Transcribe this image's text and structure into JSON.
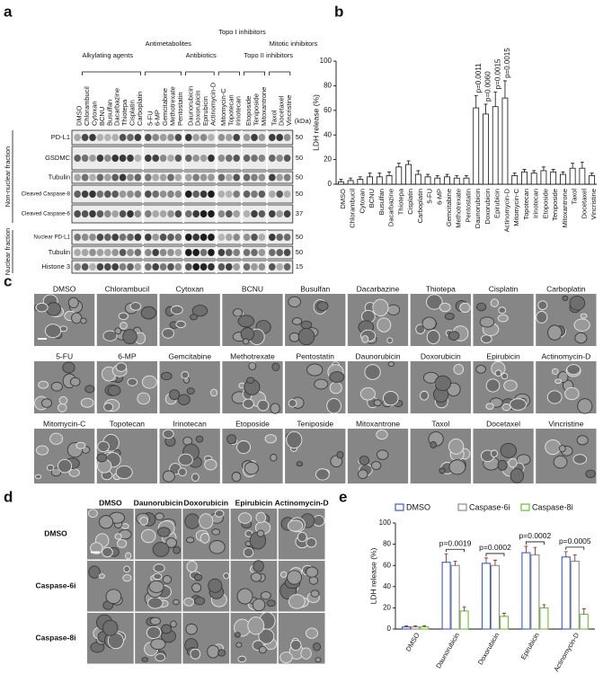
{
  "panel_labels": [
    "a",
    "b",
    "c",
    "d",
    "e"
  ],
  "highlight_color": "#e3161c",
  "highlighted": [
    "Daunorubicin",
    "Doxorubicin",
    "Epirubicin",
    "Actinomycin-D"
  ],
  "blot": {
    "control_lane": "DMSO",
    "groups": [
      {
        "name": "Alkylating agents",
        "lanes": [
          "Chlorambucil",
          "Cytoxan",
          "BCNU",
          "Busulfan",
          "Dacarbazine",
          "Thiotepa",
          "Cisplatin",
          "Carboplatin"
        ]
      },
      {
        "name": "Antimetabolites",
        "lanes": [
          "5-FU",
          "6-MP",
          "Gemcitabine",
          "Methotrexate",
          "Pentostatin"
        ]
      },
      {
        "name": "Antibiotics",
        "lanes": [
          "Daunorubicin",
          "Doxorubicin",
          "Epirubicin",
          "Actinomycin-D"
        ]
      },
      {
        "name": "Topo I inhibitors",
        "lanes": [
          "Mitomycin-C",
          "Topotecan",
          "Irinotecan"
        ]
      },
      {
        "name": "Topo II inhibitors",
        "lanes": [
          "Etoposide",
          "Teniposide",
          "Mitoxantrone"
        ]
      },
      {
        "name": "Mitotic inhibitors",
        "lanes": [
          "Taxol",
          "Docetaxel",
          "Vincristine"
        ]
      }
    ],
    "kda_unit": "(kDa)",
    "fractions": [
      {
        "name": "Non-nuclear fraction",
        "rows": [
          {
            "label": "PD-L1",
            "kda": 50
          },
          {
            "label": "GSDMC",
            "kda": 50
          },
          {
            "label": "Tubulin",
            "kda": 50
          },
          {
            "label": "Cleaved Caspase-8",
            "kda": 50
          },
          {
            "label": "Cleaved Caspase-6",
            "kda": 37
          }
        ]
      },
      {
        "name": "Nuclear fraction",
        "rows": [
          {
            "label": "Nuclear PD-L1",
            "kda": 50
          },
          {
            "label": "Tubulin",
            "kda": 50
          },
          {
            "label": "Histone 3",
            "kda": 15
          }
        ]
      }
    ]
  },
  "chart_data": [
    {
      "type": "bar",
      "y_label": "LDH release (%)",
      "categories": [
        "DMSO",
        "Chlorambucil",
        "Cytoxan",
        "BCNU",
        "Busulfan",
        "Dacarbazine",
        "Thiotepa",
        "Cisplatin",
        "Carboplatin",
        "5-FU",
        "6-MP",
        "Gemcitabine",
        "Methotrexate",
        "Pentostatin",
        "Daunorubicin",
        "Doxorubicin",
        "Epirubicin",
        "Actinomycin-D",
        "Mitomycin-C",
        "Topotecan",
        "Irinotecan",
        "Etoposide",
        "Teniposide",
        "Mitoxantrone",
        "Taxol",
        "Docetaxel",
        "Vincristine"
      ],
      "values": [
        2,
        3,
        4,
        6,
        6,
        7,
        14,
        16,
        8,
        6,
        5,
        6,
        5,
        5,
        62,
        57,
        63,
        70,
        7,
        10,
        9,
        11,
        10,
        8,
        13,
        13,
        7
      ],
      "errors": [
        2,
        2,
        2,
        3,
        3,
        3,
        3,
        3,
        3,
        2,
        2,
        2,
        2,
        2,
        10,
        8,
        12,
        14,
        2,
        2,
        2,
        3,
        2,
        2,
        4,
        5,
        2
      ],
      "color": "#ffffff",
      "edge_color": "#111111",
      "ylim": [
        0,
        100
      ],
      "yticks": [
        0,
        20,
        40,
        60,
        80,
        100
      ],
      "annotations": [
        {
          "category": "Daunorubicin",
          "text": "p=0.0011"
        },
        {
          "category": "Doxorubicin",
          "text": "p=0.0060"
        },
        {
          "category": "Epirubicin",
          "text": "p=0.0015"
        },
        {
          "category": "Actinomycin-D",
          "text": "p=0.0015"
        }
      ]
    },
    {
      "type": "grouped_bar",
      "y_label": "LDH release (%)",
      "categories": [
        "DMSO",
        "Daunorubicin",
        "Doxorubicin",
        "Epirubicin",
        "Actinomycin-D"
      ],
      "series": [
        {
          "name": "DMSO",
          "color": "#3b5cc4",
          "values": [
            2,
            63,
            62,
            72,
            68
          ],
          "errors": [
            1,
            8,
            5,
            6,
            5
          ]
        },
        {
          "name": "Caspase-6i",
          "color": "#8c8c8c",
          "values": [
            2,
            60,
            60,
            70,
            64
          ],
          "errors": [
            1,
            4,
            5,
            7,
            6
          ]
        },
        {
          "name": "Caspase-8i",
          "color": "#6cbf3a",
          "values": [
            2,
            17,
            12,
            20,
            14
          ],
          "errors": [
            1,
            4,
            3,
            3,
            5
          ]
        }
      ],
      "ylim": [
        0,
        100
      ],
      "yticks": [
        0,
        20,
        40,
        60,
        80,
        100
      ],
      "annotations": [
        {
          "category": "Daunorubicin",
          "text": "p=0.0019"
        },
        {
          "category": "Doxorubicin",
          "text": "p=0.0002"
        },
        {
          "category": "Epirubicin",
          "text": "p=0.0002"
        },
        {
          "category": "Actinomycin-D",
          "text": "p=0.0005"
        }
      ]
    }
  ],
  "micrographs_c": [
    [
      "DMSO",
      "Chlorambucil",
      "Cytoxan",
      "BCNU",
      "Busulfan",
      "Dacarbazine",
      "Thiotepa",
      "Cisplatin",
      "Carboplatin"
    ],
    [
      "5-FU",
      "6-MP",
      "Gemcitabine",
      "Methotrexate",
      "Pentostatin",
      "Daunorubicin",
      "Doxorubicin",
      "Epirubicin",
      "Actinomycin-D"
    ],
    [
      "Mitomycin-C",
      "Topotecan",
      "Irinotecan",
      "Etoposide",
      "Teniposide",
      "Mitoxantrone",
      "Taxol",
      "Docetaxel",
      "Vincristine"
    ]
  ],
  "micrographs_d": {
    "columns": [
      "DMSO",
      "Daunorubicin",
      "Doxorubicin",
      "Epirubicin",
      "Actinomycin-D"
    ],
    "rows": [
      "DMSO",
      "Caspase-6i",
      "Caspase-8i"
    ]
  }
}
